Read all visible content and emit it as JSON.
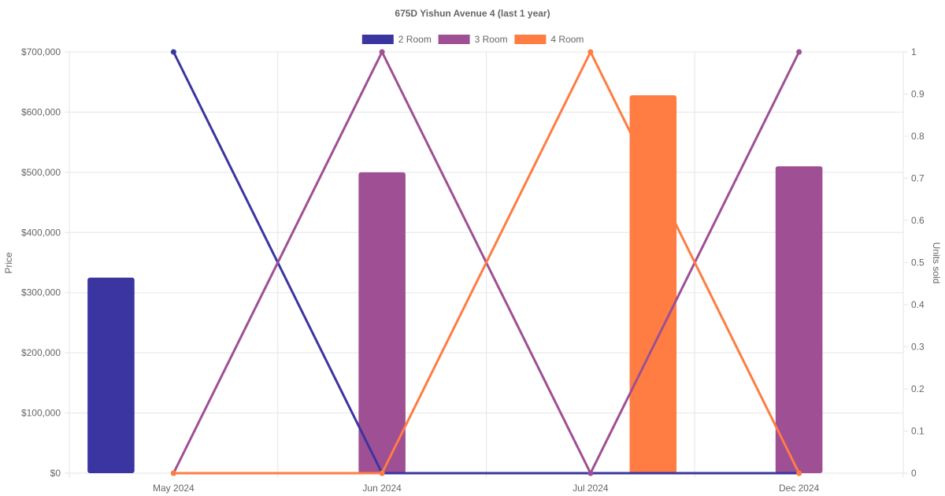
{
  "chart_data": {
    "type": "bar",
    "title": "675D Yishun Avenue 4 (last 1 year)",
    "categories": [
      "May 2024",
      "Jun 2024",
      "Jul 2024",
      "Dec 2024"
    ],
    "legend": {
      "position": "top-center"
    },
    "grid": true,
    "y_left": {
      "label": "Price",
      "range": [
        0,
        700000
      ],
      "ticks": [
        "$0",
        "$100,000",
        "$200,000",
        "$300,000",
        "$400,000",
        "$500,000",
        "$600,000",
        "$700,000"
      ]
    },
    "y_right": {
      "label": "Units sold",
      "range": [
        0,
        1
      ],
      "ticks": [
        "0",
        "0.1",
        "0.2",
        "0.3",
        "0.4",
        "0.5",
        "0.6",
        "0.7",
        "0.8",
        "0.9",
        "1"
      ]
    },
    "series": [
      {
        "name": "2 Room",
        "color": "#3a35a0",
        "price": [
          325000,
          null,
          null,
          null
        ],
        "units": [
          1,
          0,
          0,
          0
        ]
      },
      {
        "name": "3 Room",
        "color": "#9f4f93",
        "price": [
          null,
          500000,
          null,
          510000
        ],
        "units": [
          0,
          1,
          0,
          1
        ]
      },
      {
        "name": "4 Room",
        "color": "#ff7c43",
        "price": [
          null,
          null,
          628000,
          null
        ],
        "units": [
          0,
          0,
          1,
          0
        ]
      }
    ]
  }
}
